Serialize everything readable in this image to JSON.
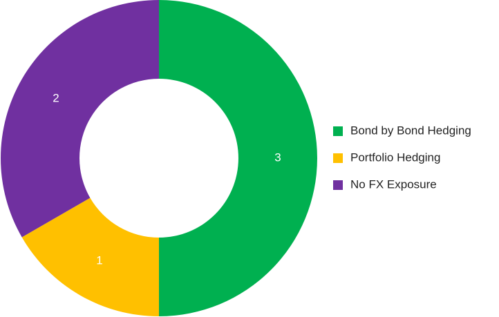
{
  "chart_data": {
    "type": "donut",
    "categories": [
      "Bond by Bond Hedging",
      "Portfolio Hedging",
      "No FX Exposure"
    ],
    "values": [
      3,
      1,
      2
    ],
    "colors": [
      "#00b050",
      "#ffc000",
      "#7030a0"
    ],
    "legend": "right"
  }
}
